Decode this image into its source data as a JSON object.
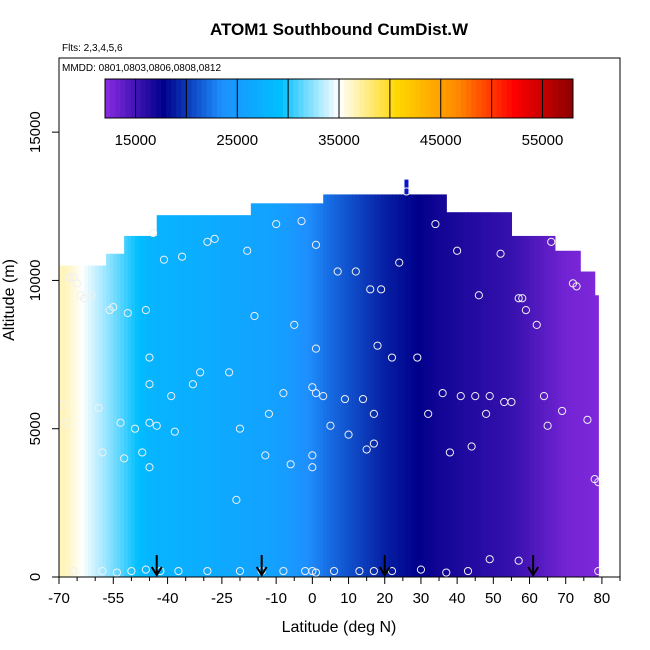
{
  "chart_data": {
    "type": "heatmap",
    "title": "ATOM1 Southbound CumDist.W",
    "notes": [
      "Flts: 2,3,4,5,6",
      "MMDD: 0801,0803,0806,0808,0812"
    ],
    "xlabel": "Latitude (deg N)",
    "ylabel": "Altitude (m)",
    "xlim": [
      -70,
      85
    ],
    "ylim": [
      0,
      17500
    ],
    "x_ticks": [
      -70,
      -55,
      -40,
      -25,
      -10,
      0,
      10,
      20,
      30,
      40,
      50,
      60,
      70,
      80
    ],
    "x_minor_ticks": [
      -65,
      -60,
      -50,
      -45,
      -35,
      -30,
      -20,
      -15,
      -5,
      5,
      15,
      25,
      35,
      45,
      55,
      65,
      75,
      85
    ],
    "y_ticks": [
      0,
      5000,
      10000,
      15000
    ],
    "colorbar": {
      "range": [
        12000,
        58000
      ],
      "ticks": [
        15000,
        25000,
        35000,
        45000,
        55000
      ],
      "major_boundaries": [
        20000,
        30000,
        40000,
        50000
      ],
      "colors": [
        "#8a2be2",
        "#00008b",
        "#1e90ff",
        "#00bfff",
        "#ffffff",
        "#ffd700",
        "#ff8c00",
        "#ff0000",
        "#8b0000"
      ]
    },
    "field_color_stops": [
      {
        "lat": -68,
        "value": 36500
      },
      {
        "lat": -55,
        "value": 32000
      },
      {
        "lat": -45,
        "value": 28000
      },
      {
        "lat": -30,
        "value": 27000
      },
      {
        "lat": -10,
        "value": 25500
      },
      {
        "lat": 5,
        "value": 22000
      },
      {
        "lat": 20,
        "value": 19000
      },
      {
        "lat": 35,
        "value": 17000
      },
      {
        "lat": 55,
        "value": 15500
      },
      {
        "lat": 70,
        "value": 13000
      },
      {
        "lat": 79,
        "value": 12500
      }
    ],
    "field_top": [
      {
        "lat": -70,
        "top": 10500
      },
      {
        "lat": -57,
        "top": 10900
      },
      {
        "lat": -52,
        "top": 11500
      },
      {
        "lat": -45,
        "top": 11500
      },
      {
        "lat": -43,
        "top": 12200
      },
      {
        "lat": -20,
        "top": 12200
      },
      {
        "lat": -17,
        "top": 12600
      },
      {
        "lat": 2,
        "top": 12600
      },
      {
        "lat": 3,
        "top": 12900
      },
      {
        "lat": 36,
        "top": 12900
      },
      {
        "lat": 37,
        "top": 12300
      },
      {
        "lat": 52,
        "top": 12300
      },
      {
        "lat": 55,
        "top": 11500
      },
      {
        "lat": 64,
        "top": 11500
      },
      {
        "lat": 67,
        "top": 11000
      },
      {
        "lat": 72,
        "top": 11000
      },
      {
        "lat": 74,
        "top": 10300
      },
      {
        "lat": 77,
        "top": 10300
      },
      {
        "lat": 78,
        "top": 9500
      },
      {
        "lat": 79,
        "top": 9500
      }
    ],
    "field_range_lat": [
      -70,
      79
    ],
    "obs_points": [
      {
        "lat": -69,
        "alt": 5800
      },
      {
        "lat": -68,
        "alt": 5200
      },
      {
        "lat": -67,
        "alt": 10100
      },
      {
        "lat": -66,
        "alt": 10100
      },
      {
        "lat": -65,
        "alt": 9900
      },
      {
        "lat": -64,
        "alt": 9500
      },
      {
        "lat": -63,
        "alt": 9400
      },
      {
        "lat": -61,
        "alt": 9500
      },
      {
        "lat": -59,
        "alt": 5700
      },
      {
        "lat": -58,
        "alt": 4200
      },
      {
        "lat": -56,
        "alt": 9000
      },
      {
        "lat": -55,
        "alt": 9100
      },
      {
        "lat": -53,
        "alt": 5200
      },
      {
        "lat": -52,
        "alt": 4000
      },
      {
        "lat": -51,
        "alt": 8900
      },
      {
        "lat": -49,
        "alt": 5000
      },
      {
        "lat": -47,
        "alt": 4200
      },
      {
        "lat": -46,
        "alt": 9000
      },
      {
        "lat": -45,
        "alt": 7400
      },
      {
        "lat": -45,
        "alt": 6500
      },
      {
        "lat": -45,
        "alt": 5200
      },
      {
        "lat": -45,
        "alt": 3700
      },
      {
        "lat": -44,
        "alt": 11600
      },
      {
        "lat": -43,
        "alt": 5100
      },
      {
        "lat": -41,
        "alt": 10700
      },
      {
        "lat": -39,
        "alt": 6100
      },
      {
        "lat": -38,
        "alt": 4900
      },
      {
        "lat": -36,
        "alt": 10800
      },
      {
        "lat": -33,
        "alt": 6500
      },
      {
        "lat": -31,
        "alt": 6900
      },
      {
        "lat": -29,
        "alt": 11300
      },
      {
        "lat": -27,
        "alt": 11400
      },
      {
        "lat": -23,
        "alt": 6900
      },
      {
        "lat": -21,
        "alt": 2600
      },
      {
        "lat": -20,
        "alt": 5000
      },
      {
        "lat": -18,
        "alt": 11000
      },
      {
        "lat": -16,
        "alt": 8800
      },
      {
        "lat": -13,
        "alt": 4100
      },
      {
        "lat": -12,
        "alt": 5500
      },
      {
        "lat": -10,
        "alt": 11900
      },
      {
        "lat": -8,
        "alt": 6200
      },
      {
        "lat": -6,
        "alt": 3800
      },
      {
        "lat": -5,
        "alt": 8500
      },
      {
        "lat": -3,
        "alt": 12000
      },
      {
        "lat": 0,
        "alt": 6400
      },
      {
        "lat": 0,
        "alt": 4100
      },
      {
        "lat": 0,
        "alt": 3700
      },
      {
        "lat": 1,
        "alt": 11200
      },
      {
        "lat": 1,
        "alt": 7700
      },
      {
        "lat": 1,
        "alt": 6200
      },
      {
        "lat": 3,
        "alt": 6100
      },
      {
        "lat": 5,
        "alt": 5100
      },
      {
        "lat": 7,
        "alt": 10300
      },
      {
        "lat": 9,
        "alt": 6000
      },
      {
        "lat": 10,
        "alt": 4800
      },
      {
        "lat": 12,
        "alt": 10300
      },
      {
        "lat": 14,
        "alt": 6000
      },
      {
        "lat": 15,
        "alt": 4300
      },
      {
        "lat": 16,
        "alt": 9700
      },
      {
        "lat": 17,
        "alt": 5500
      },
      {
        "lat": 17,
        "alt": 4500
      },
      {
        "lat": 18,
        "alt": 7800
      },
      {
        "lat": 19,
        "alt": 9700
      },
      {
        "lat": 22,
        "alt": 7400
      },
      {
        "lat": 24,
        "alt": 10600
      },
      {
        "lat": 26,
        "alt": 13000
      },
      {
        "lat": 29,
        "alt": 7400
      },
      {
        "lat": 32,
        "alt": 5500
      },
      {
        "lat": 34,
        "alt": 11900
      },
      {
        "lat": 36,
        "alt": 6200
      },
      {
        "lat": 38,
        "alt": 4200
      },
      {
        "lat": 40,
        "alt": 11000
      },
      {
        "lat": 41,
        "alt": 6100
      },
      {
        "lat": 44,
        "alt": 4400
      },
      {
        "lat": 45,
        "alt": 6100
      },
      {
        "lat": 46,
        "alt": 9500
      },
      {
        "lat": 48,
        "alt": 5500
      },
      {
        "lat": 49,
        "alt": 6100
      },
      {
        "lat": 52,
        "alt": 10900
      },
      {
        "lat": 53,
        "alt": 5900
      },
      {
        "lat": 55,
        "alt": 5900
      },
      {
        "lat": 57,
        "alt": 9400
      },
      {
        "lat": 58,
        "alt": 9400
      },
      {
        "lat": 59,
        "alt": 9000
      },
      {
        "lat": 62,
        "alt": 8500
      },
      {
        "lat": 64,
        "alt": 6100
      },
      {
        "lat": 65,
        "alt": 5100
      },
      {
        "lat": 66,
        "alt": 11300
      },
      {
        "lat": 69,
        "alt": 5600
      },
      {
        "lat": 72,
        "alt": 9900
      },
      {
        "lat": 73,
        "alt": 9800
      },
      {
        "lat": 76,
        "alt": 5300
      },
      {
        "lat": 78,
        "alt": 3300
      },
      {
        "lat": 79,
        "alt": 3200
      },
      {
        "lat": -66,
        "alt": 200
      },
      {
        "lat": -58,
        "alt": 200
      },
      {
        "lat": -54,
        "alt": 150
      },
      {
        "lat": -50,
        "alt": 200
      },
      {
        "lat": -46,
        "alt": 250
      },
      {
        "lat": -42,
        "alt": 200
      },
      {
        "lat": -37,
        "alt": 200
      },
      {
        "lat": -29,
        "alt": 200
      },
      {
        "lat": -20,
        "alt": 200
      },
      {
        "lat": -14,
        "alt": 200
      },
      {
        "lat": -8,
        "alt": 200
      },
      {
        "lat": -2,
        "alt": 200
      },
      {
        "lat": 0,
        "alt": 200
      },
      {
        "lat": 1,
        "alt": 150
      },
      {
        "lat": 6,
        "alt": 200
      },
      {
        "lat": 13,
        "alt": 200
      },
      {
        "lat": 17,
        "alt": 200
      },
      {
        "lat": 22,
        "alt": 200
      },
      {
        "lat": 30,
        "alt": 250
      },
      {
        "lat": 37,
        "alt": 150
      },
      {
        "lat": 43,
        "alt": 200
      },
      {
        "lat": 49,
        "alt": 600
      },
      {
        "lat": 57,
        "alt": 550
      },
      {
        "lat": 79,
        "alt": 200
      }
    ],
    "arrows_lat": [
      -43,
      -14,
      20,
      61
    ],
    "top_marker": {
      "lat": 26,
      "alt": 13400
    }
  }
}
